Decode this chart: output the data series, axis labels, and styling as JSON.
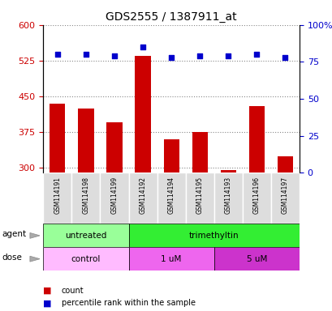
{
  "title": "GDS2555 / 1387911_at",
  "samples": [
    "GSM114191",
    "GSM114198",
    "GSM114199",
    "GSM114192",
    "GSM114194",
    "GSM114195",
    "GSM114193",
    "GSM114196",
    "GSM114197"
  ],
  "counts": [
    435,
    425,
    395,
    535,
    360,
    375,
    295,
    430,
    325
  ],
  "percentiles": [
    80,
    80,
    79,
    85,
    78,
    79,
    79,
    80,
    78
  ],
  "ymin": 290,
  "ymax": 600,
  "yticks": [
    300,
    375,
    450,
    525,
    600
  ],
  "right_yticks": [
    0,
    25,
    50,
    75,
    100
  ],
  "bar_color": "#cc0000",
  "dot_color": "#0000cc",
  "bar_bottom": 290,
  "agent_groups": [
    {
      "label": "untreated",
      "start": 0,
      "end": 3,
      "color": "#99ff99"
    },
    {
      "label": "trimethyltin",
      "start": 3,
      "end": 9,
      "color": "#33ee33"
    }
  ],
  "dose_groups": [
    {
      "label": "control",
      "start": 0,
      "end": 3,
      "color": "#ffbbff"
    },
    {
      "label": "1 uM",
      "start": 3,
      "end": 6,
      "color": "#ee66ee"
    },
    {
      "label": "5 uM",
      "start": 6,
      "end": 9,
      "color": "#cc33cc"
    }
  ],
  "legend_count_color": "#cc0000",
  "legend_pct_color": "#0000cc",
  "grid_color": "#888888",
  "tick_label_color_left": "#cc0000",
  "tick_label_color_right": "#0000cc",
  "sample_bg_color": "#dddddd",
  "agent_label": "agent",
  "dose_label": "dose"
}
